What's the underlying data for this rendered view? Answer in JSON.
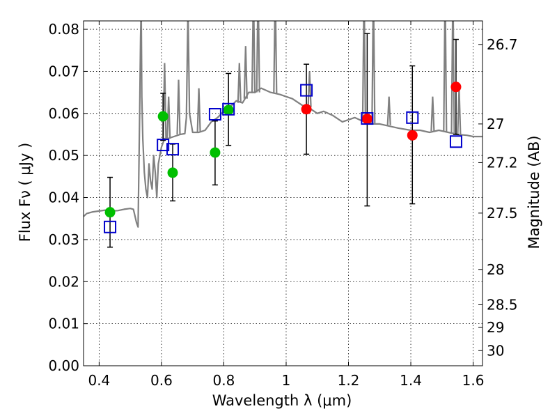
{
  "chart_data": {
    "type": "scatter",
    "title": "",
    "xlabel": "Wavelength  λ (μm)",
    "ylabel": "Flux  Fν  ( μJy )",
    "ylabel2": "Magnitude (AB)",
    "xlim": [
      0.35,
      1.63
    ],
    "ylim": [
      0.0,
      0.082
    ],
    "grid": true,
    "xticks": [
      {
        "value": 0.4,
        "label": "0.4"
      },
      {
        "value": 0.6,
        "label": "0.6"
      },
      {
        "value": 0.8,
        "label": "0.8"
      },
      {
        "value": 1.0,
        "label": "1"
      },
      {
        "value": 1.2,
        "label": "1.2"
      },
      {
        "value": 1.4,
        "label": "1.4"
      },
      {
        "value": 1.6,
        "label": "1.6"
      }
    ],
    "yticks": [
      {
        "value": 0.0,
        "label": "0.00"
      },
      {
        "value": 0.01,
        "label": "0.01"
      },
      {
        "value": 0.02,
        "label": "0.02"
      },
      {
        "value": 0.03,
        "label": "0.03"
      },
      {
        "value": 0.04,
        "label": "0.04"
      },
      {
        "value": 0.05,
        "label": "0.05"
      },
      {
        "value": 0.06,
        "label": "0.06"
      },
      {
        "value": 0.07,
        "label": "0.07"
      },
      {
        "value": 0.08,
        "label": "0.08"
      }
    ],
    "mag_ticks": [
      {
        "flux": 0.0764,
        "label": "26.7"
      },
      {
        "flux": 0.0575,
        "label": "27"
      },
      {
        "flux": 0.0483,
        "label": "27.2"
      },
      {
        "flux": 0.0363,
        "label": "27.5"
      },
      {
        "flux": 0.0229,
        "label": "28"
      },
      {
        "flux": 0.0145,
        "label": "28.5"
      },
      {
        "flux": 0.0091,
        "label": "29"
      },
      {
        "flux": 0.0036,
        "label": "30"
      }
    ],
    "series": [
      {
        "name": "model SED",
        "kind": "line",
        "color": "#808080",
        "x": [
          0.35,
          0.36,
          0.38,
          0.4,
          0.42,
          0.44,
          0.46,
          0.48,
          0.5,
          0.51,
          0.52,
          0.525,
          0.53,
          0.533,
          0.535,
          0.537,
          0.54,
          0.545,
          0.55,
          0.555,
          0.56,
          0.565,
          0.57,
          0.575,
          0.58,
          0.585,
          0.59,
          0.6,
          0.61,
          0.62,
          0.64,
          0.66,
          0.675,
          0.68,
          0.685,
          0.69,
          0.7,
          0.72,
          0.74,
          0.76,
          0.78,
          0.8,
          0.82,
          0.84,
          0.86,
          0.88,
          0.9,
          0.92,
          0.95,
          0.98,
          1.0,
          1.02,
          1.05,
          1.08,
          1.1,
          1.12,
          1.15,
          1.18,
          1.2,
          1.22,
          1.25,
          1.28,
          1.3,
          1.33,
          1.36,
          1.4,
          1.43,
          1.46,
          1.49,
          1.52,
          1.55,
          1.58,
          1.6,
          1.63
        ],
        "y": [
          0.0355,
          0.0362,
          0.0366,
          0.0368,
          0.037,
          0.0368,
          0.0369,
          0.0372,
          0.0374,
          0.0372,
          0.034,
          0.033,
          0.06,
          0.078,
          0.085,
          0.064,
          0.054,
          0.046,
          0.042,
          0.04,
          0.048,
          0.044,
          0.042,
          0.05,
          0.046,
          0.04,
          0.048,
          0.052,
          0.054,
          0.054,
          0.0545,
          0.055,
          0.0552,
          0.059,
          0.085,
          0.06,
          0.0555,
          0.0555,
          0.056,
          0.058,
          0.059,
          0.0605,
          0.0615,
          0.063,
          0.0625,
          0.065,
          0.065,
          0.066,
          0.065,
          0.0645,
          0.064,
          0.0635,
          0.062,
          0.061,
          0.06,
          0.0605,
          0.0595,
          0.058,
          0.0585,
          0.059,
          0.058,
          0.0575,
          0.0575,
          0.057,
          0.0565,
          0.056,
          0.056,
          0.0555,
          0.056,
          0.0555,
          0.055,
          0.0548,
          0.0545,
          0.0545
        ]
      },
      {
        "name": "model SED emission lines",
        "kind": "spikes",
        "color": "#808080",
        "x": [
          0.61,
          0.623,
          0.655,
          0.72,
          0.85,
          0.87,
          0.895,
          0.91,
          0.965,
          1.075,
          1.25,
          1.28,
          1.33,
          1.47,
          1.51,
          1.535,
          1.555
        ],
        "base": [
          0.054,
          0.054,
          0.055,
          0.0555,
          0.0625,
          0.0635,
          0.0648,
          0.065,
          0.0648,
          0.0615,
          0.0582,
          0.0577,
          0.0572,
          0.0558,
          0.0556,
          0.0553,
          0.055
        ],
        "peak": [
          0.072,
          0.064,
          0.068,
          0.066,
          0.072,
          0.076,
          0.09,
          0.09,
          0.09,
          0.07,
          0.09,
          0.09,
          0.064,
          0.064,
          0.09,
          0.09,
          0.066
        ]
      },
      {
        "name": "observed flux (green)",
        "kind": "points",
        "marker": "circle",
        "color": "#00bf00",
        "points": [
          {
            "x": 0.435,
            "y": 0.0365
          },
          {
            "x": 0.605,
            "y": 0.0593
          },
          {
            "x": 0.636,
            "y": 0.0459
          },
          {
            "x": 0.772,
            "y": 0.0507
          },
          {
            "x": 0.815,
            "y": 0.0608
          }
        ]
      },
      {
        "name": "observed flux (red)",
        "kind": "points",
        "marker": "circle",
        "color": "#ff0000",
        "points": [
          {
            "x": 1.065,
            "y": 0.061
          },
          {
            "x": 1.26,
            "y": 0.0587
          },
          {
            "x": 1.405,
            "y": 0.0548
          },
          {
            "x": 1.545,
            "y": 0.0663
          }
        ]
      },
      {
        "name": "model flux (squares)",
        "kind": "points",
        "marker": "square",
        "color": "#0000cc",
        "points": [
          {
            "x": 0.435,
            "y": 0.033
          },
          {
            "x": 0.605,
            "y": 0.0525
          },
          {
            "x": 0.636,
            "y": 0.0515
          },
          {
            "x": 0.772,
            "y": 0.0598
          },
          {
            "x": 0.815,
            "y": 0.061
          },
          {
            "x": 1.065,
            "y": 0.0655
          },
          {
            "x": 1.26,
            "y": 0.0588
          },
          {
            "x": 1.405,
            "y": 0.059
          },
          {
            "x": 1.545,
            "y": 0.0533
          }
        ]
      },
      {
        "name": "error bars",
        "kind": "errorbars",
        "color": "#000000",
        "bars": [
          {
            "x": 0.435,
            "low": 0.0282,
            "high": 0.0448
          },
          {
            "x": 0.605,
            "low": 0.0536,
            "high": 0.0648
          },
          {
            "x": 0.636,
            "low": 0.0392,
            "high": 0.0527
          },
          {
            "x": 0.772,
            "low": 0.043,
            "high": 0.0582
          },
          {
            "x": 0.815,
            "low": 0.0524,
            "high": 0.0695
          },
          {
            "x": 1.065,
            "low": 0.0503,
            "high": 0.0717
          },
          {
            "x": 1.26,
            "low": 0.038,
            "high": 0.079
          },
          {
            "x": 1.405,
            "low": 0.0385,
            "high": 0.0713
          },
          {
            "x": 1.545,
            "low": 0.055,
            "high": 0.0776
          }
        ]
      }
    ]
  }
}
